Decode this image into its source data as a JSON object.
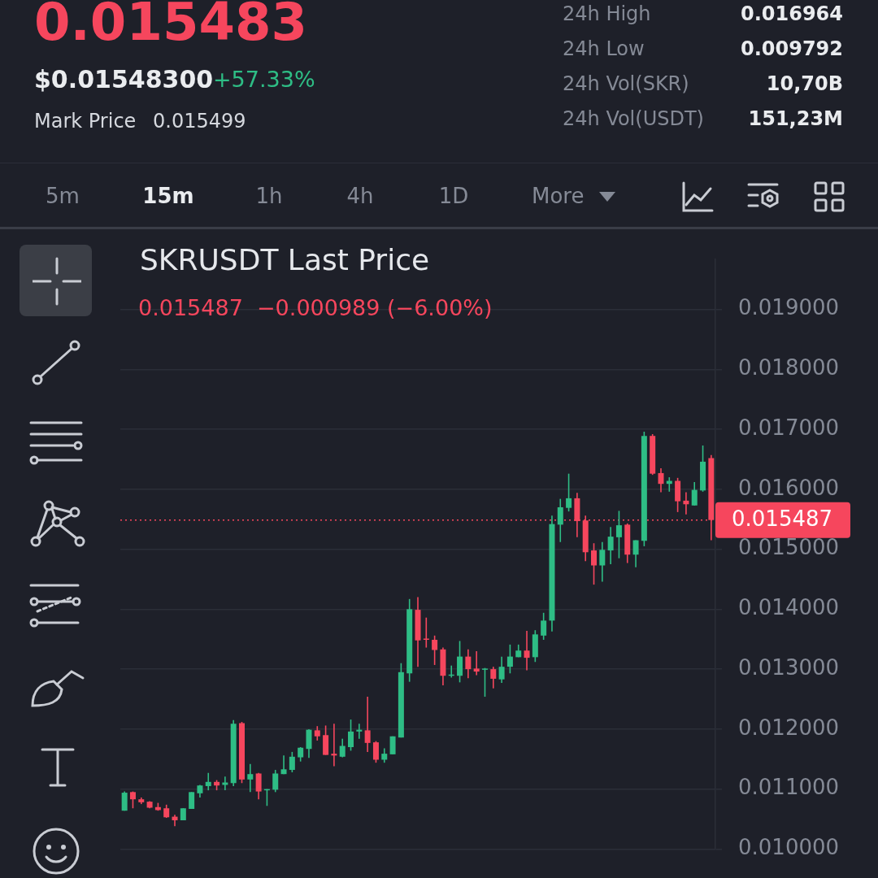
{
  "chart_data": {
    "type": "candlestick",
    "title": "SKRUSDT Last Price",
    "subtitle": "0.015487  −0.000989 (−6.00%)",
    "annotations": [
      "0.015483",
      "$0.01548300",
      "+57.33%",
      "Mark Price",
      "0.015499",
      "24h High",
      "0.016964",
      "24h Low",
      "0.009792",
      "24h Vol(SKR)",
      "10,70B",
      "24h Vol(USDT)",
      "151,23M",
      "5m",
      "15m",
      "1h",
      "4h",
      "1D",
      "More"
    ],
    "categories": [
      null,
      null,
      null,
      null,
      null,
      null,
      null,
      null,
      null,
      null,
      null,
      null,
      null,
      null,
      null,
      null,
      null,
      null,
      null,
      null,
      null,
      null,
      null,
      null,
      null,
      null,
      null,
      null,
      null,
      null,
      null,
      null,
      null,
      null,
      null,
      null,
      null,
      null,
      null,
      null,
      null,
      null,
      null,
      null,
      null,
      null,
      null,
      null,
      null,
      null,
      null,
      null,
      null,
      null,
      null,
      null,
      null,
      null,
      null,
      null,
      null,
      null,
      null,
      null,
      null,
      null,
      null,
      null,
      null,
      null,
      null
    ],
    "ohlc": [
      [
        0.01064,
        0.01096,
        0.01064,
        0.01094
      ],
      [
        0.01095,
        0.01096,
        0.01068,
        0.01083
      ],
      [
        0.01083,
        0.01086,
        0.01075,
        0.01078
      ],
      [
        0.01079,
        0.0108,
        0.01068,
        0.01069
      ],
      [
        0.0107,
        0.01077,
        0.01064,
        0.01065
      ],
      [
        0.01068,
        0.01074,
        0.01052,
        0.01053
      ],
      [
        0.01054,
        0.01057,
        0.01038,
        0.01048
      ],
      [
        0.01048,
        0.01068,
        0.01048,
        0.01068
      ],
      [
        0.01067,
        0.01095,
        0.01067,
        0.01095
      ],
      [
        0.01093,
        0.01107,
        0.01086,
        0.01106
      ],
      [
        0.01105,
        0.01127,
        0.01098,
        0.01112
      ],
      [
        0.01112,
        0.01115,
        0.01098,
        0.01106
      ],
      [
        0.01107,
        0.01121,
        0.01098,
        0.01111
      ],
      [
        0.0111,
        0.01215,
        0.01105,
        0.01209
      ],
      [
        0.0121,
        0.01212,
        0.0111,
        0.01116
      ],
      [
        0.01116,
        0.01142,
        0.01095,
        0.01125
      ],
      [
        0.01126,
        0.01127,
        0.01083,
        0.01096
      ],
      [
        0.01099,
        0.011,
        0.01072,
        0.011
      ],
      [
        0.01099,
        0.01132,
        0.01095,
        0.01126
      ],
      [
        0.01125,
        0.01156,
        0.01125,
        0.01133
      ],
      [
        0.01132,
        0.01162,
        0.01128,
        0.01154
      ],
      [
        0.01153,
        0.0117,
        0.01146,
        0.01169
      ],
      [
        0.01167,
        0.012,
        0.01152,
        0.01199
      ],
      [
        0.01198,
        0.01205,
        0.01181,
        0.01188
      ],
      [
        0.0119,
        0.01206,
        0.01157,
        0.01157
      ],
      [
        0.01159,
        0.01209,
        0.01138,
        0.01156
      ],
      [
        0.01154,
        0.01184,
        0.01153,
        0.01172
      ],
      [
        0.0117,
        0.01216,
        0.01164,
        0.01196
      ],
      [
        0.01196,
        0.01209,
        0.01184,
        0.01199
      ],
      [
        0.01198,
        0.01254,
        0.01162,
        0.01177
      ],
      [
        0.01178,
        0.0118,
        0.01144,
        0.01149
      ],
      [
        0.01149,
        0.01168,
        0.01144,
        0.01159
      ],
      [
        0.01158,
        0.01188,
        0.01158,
        0.01188
      ],
      [
        0.01186,
        0.0131,
        0.01186,
        0.01295
      ],
      [
        0.01293,
        0.01417,
        0.01279,
        0.014
      ],
      [
        0.01399,
        0.0142,
        0.01304,
        0.01348
      ],
      [
        0.01351,
        0.01386,
        0.01336,
        0.01349
      ],
      [
        0.01349,
        0.01356,
        0.01307,
        0.01332
      ],
      [
        0.01333,
        0.01336,
        0.01273,
        0.01289
      ],
      [
        0.01289,
        0.01306,
        0.01286,
        0.01291
      ],
      [
        0.01289,
        0.01347,
        0.01278,
        0.01321
      ],
      [
        0.01321,
        0.01333,
        0.01285,
        0.013
      ],
      [
        0.01301,
        0.0133,
        0.0129,
        0.01296
      ],
      [
        0.013,
        0.01302,
        0.01254,
        0.01301
      ],
      [
        0.013,
        0.01304,
        0.01268,
        0.01284
      ],
      [
        0.01283,
        0.01321,
        0.01277,
        0.01304
      ],
      [
        0.01304,
        0.01341,
        0.01293,
        0.01321
      ],
      [
        0.0132,
        0.01341,
        0.0132,
        0.01331
      ],
      [
        0.01331,
        0.01364,
        0.01298,
        0.01319
      ],
      [
        0.0132,
        0.01365,
        0.01312,
        0.01358
      ],
      [
        0.01356,
        0.01394,
        0.01349,
        0.01381
      ],
      [
        0.01381,
        0.01556,
        0.01363,
        0.01542
      ],
      [
        0.01541,
        0.01584,
        0.01512,
        0.0157
      ],
      [
        0.01569,
        0.01626,
        0.01563,
        0.01585
      ],
      [
        0.01585,
        0.01594,
        0.0152,
        0.01547
      ],
      [
        0.01548,
        0.01556,
        0.0148,
        0.01495
      ],
      [
        0.01498,
        0.0151,
        0.01441,
        0.01473
      ],
      [
        0.01473,
        0.01512,
        0.01446,
        0.01499
      ],
      [
        0.01498,
        0.01537,
        0.01475,
        0.01521
      ],
      [
        0.0152,
        0.01564,
        0.01485,
        0.0154
      ],
      [
        0.01541,
        0.01543,
        0.01477,
        0.01491
      ],
      [
        0.01491,
        0.01515,
        0.0147,
        0.01515
      ],
      [
        0.01514,
        0.01696,
        0.01505,
        0.01689
      ],
      [
        0.01689,
        0.01692,
        0.01624,
        0.01626
      ],
      [
        0.01627,
        0.01635,
        0.01595,
        0.01609
      ],
      [
        0.01609,
        0.0162,
        0.01596,
        0.01614
      ],
      [
        0.01614,
        0.01619,
        0.01562,
        0.0158
      ],
      [
        0.01581,
        0.01595,
        0.01558,
        0.01575
      ],
      [
        0.01573,
        0.01612,
        0.01573,
        0.01599
      ],
      [
        0.01598,
        0.01673,
        0.01596,
        0.01646
      ],
      [
        0.01652,
        0.01657,
        0.01515,
        0.015487
      ]
    ],
    "colors": [
      "#2ebd85",
      "#f6465d",
      "#f6465d",
      "#f6465d",
      "#f6465d",
      "#f6465d",
      "#f6465d",
      "#2ebd85",
      "#2ebd85",
      "#2ebd85",
      "#2ebd85",
      "#f6465d",
      "#2ebd85",
      "#2ebd85",
      "#f6465d",
      "#2ebd85",
      "#f6465d",
      "#2ebd85",
      "#2ebd85",
      "#2ebd85",
      "#2ebd85",
      "#2ebd85",
      "#2ebd85",
      "#f6465d",
      "#f6465d",
      "#f6465d",
      "#2ebd85",
      "#2ebd85",
      "#2ebd85",
      "#f6465d",
      "#f6465d",
      "#2ebd85",
      "#2ebd85",
      "#2ebd85",
      "#2ebd85",
      "#f6465d",
      "#f6465d",
      "#f6465d",
      "#f6465d",
      "#2ebd85",
      "#2ebd85",
      "#f6465d",
      "#f6465d",
      "#2ebd85",
      "#f6465d",
      "#2ebd85",
      "#2ebd85",
      "#2ebd85",
      "#f6465d",
      "#2ebd85",
      "#2ebd85",
      "#2ebd85",
      "#2ebd85",
      "#2ebd85",
      "#f6465d",
      "#f6465d",
      "#f6465d",
      "#2ebd85",
      "#2ebd85",
      "#2ebd85",
      "#f6465d",
      "#2ebd85",
      "#2ebd85",
      "#f6465d",
      "#f6465d",
      "#2ebd85",
      "#f6465d",
      "#f6465d",
      "#2ebd85",
      "#2ebd85",
      "#f6465d"
    ],
    "ylim": [
      0.01,
      0.01984
    ],
    "yticks": [
      {
        "value": 0.01,
        "label": "0.010000"
      },
      {
        "value": 0.011,
        "label": "0.011000"
      },
      {
        "value": 0.012,
        "label": "0.012000"
      },
      {
        "value": 0.013,
        "label": "0.013000"
      },
      {
        "value": 0.014,
        "label": "0.014000"
      },
      {
        "value": 0.015,
        "label": "0.015000"
      },
      {
        "value": 0.016,
        "label": "0.016000"
      },
      {
        "value": 0.017,
        "label": "0.017000"
      },
      {
        "value": 0.018,
        "label": "0.018000"
      },
      {
        "value": 0.019,
        "label": "0.019000"
      }
    ],
    "ref_lines": [
      {
        "axis": "y",
        "value": 0.015487,
        "label": "0.015487",
        "color": "#f6465d",
        "line_style": "dotted"
      }
    ],
    "grid": "y"
  }
}
